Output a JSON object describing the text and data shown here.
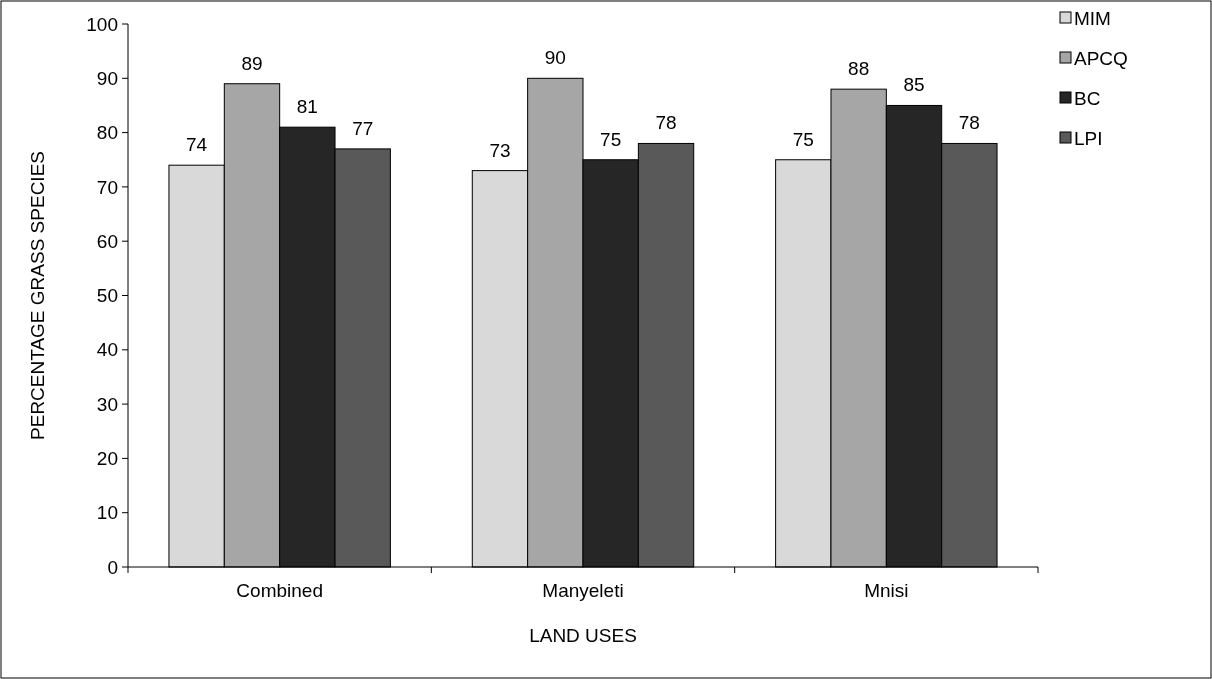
{
  "chart_data": {
    "type": "bar",
    "xlabel": "LAND USES",
    "ylabel": "PERCENTAGE GRASS SPECIES",
    "categories": [
      "Combined",
      "Manyeleti",
      "Mnisi"
    ],
    "series": [
      {
        "name": "MIM",
        "color": "#d9d9d9",
        "values": [
          74,
          73,
          75
        ]
      },
      {
        "name": "APCQ",
        "color": "#a6a6a6",
        "values": [
          89,
          90,
          88
        ]
      },
      {
        "name": "BC",
        "color": "#262626",
        "values": [
          81,
          75,
          85
        ]
      },
      {
        "name": "LPI",
        "color": "#595959",
        "values": [
          77,
          78,
          78
        ]
      }
    ],
    "ylim": [
      0,
      100
    ],
    "yticks": [
      0,
      10,
      20,
      30,
      40,
      50,
      60,
      70,
      80,
      90,
      100
    ],
    "grid": false,
    "legend": "top right",
    "data_labels": true
  }
}
